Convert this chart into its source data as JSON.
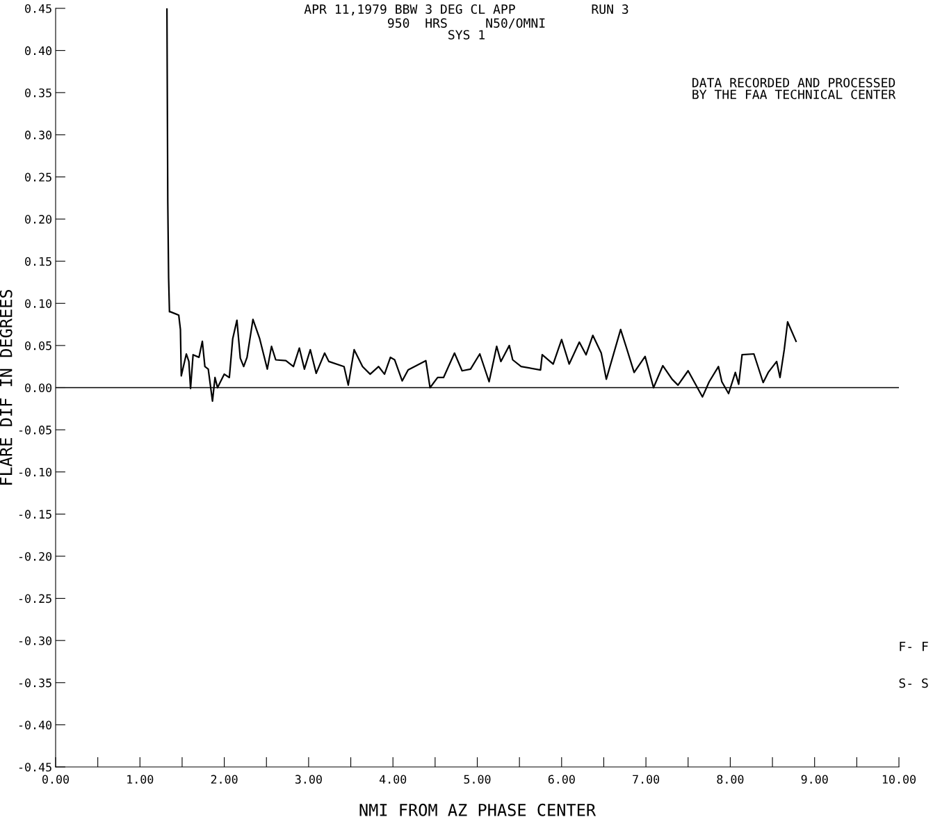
{
  "chart_data": {
    "type": "line",
    "title": "APR 11,1979 BBW 3 DEG CL APP          RUN 3",
    "subtitle": "950  HRS     N50/OMNI\nSYS 1",
    "xlabel": "NMI FROM AZ PHASE CENTER",
    "ylabel": "FLARE DIF IN DEGREES",
    "annotations": [
      "DATA RECORDED AND PROCESSED\nBY THE FAA TECHNICAL CENTER",
      "F- F",
      "S- S"
    ],
    "series": [
      {
        "color": "#000000",
        "x": [
          1.32,
          1.33,
          1.34,
          1.35,
          1.36,
          1.46,
          1.48,
          1.49,
          1.55,
          1.58,
          1.6,
          1.63,
          1.7,
          1.74,
          1.77,
          1.81,
          1.86,
          1.89,
          1.92,
          2.0,
          2.06,
          2.1,
          2.15,
          2.19,
          2.23,
          2.27,
          2.34,
          2.42,
          2.51,
          2.56,
          2.61,
          2.73,
          2.82,
          2.89,
          2.95,
          3.02,
          3.09,
          3.19,
          3.24,
          3.42,
          3.47,
          3.54,
          3.64,
          3.73,
          3.83,
          3.9,
          3.97,
          4.02,
          4.11,
          4.18,
          4.39,
          4.44,
          4.53,
          4.6,
          4.73,
          4.82,
          4.92,
          5.03,
          5.14,
          5.23,
          5.28,
          5.38,
          5.42,
          5.52,
          5.75,
          5.77,
          5.9,
          6.0,
          6.09,
          6.21,
          6.29,
          6.37,
          6.47,
          6.53,
          6.7,
          6.77,
          6.86,
          6.99,
          7.09,
          7.2,
          7.31,
          7.38,
          7.5,
          7.67,
          7.75,
          7.86,
          7.9,
          7.98,
          8.06,
          8.1,
          8.14,
          8.28,
          8.39,
          8.45,
          8.55,
          8.59,
          8.64,
          8.68,
          8.78
        ],
        "values": [
          0.45,
          0.22,
          0.13,
          0.09,
          0.09,
          0.086,
          0.069,
          0.014,
          0.04,
          0.031,
          -0.001,
          0.039,
          0.036,
          0.055,
          0.025,
          0.022,
          -0.016,
          0.012,
          0.0,
          0.016,
          0.012,
          0.058,
          0.08,
          0.035,
          0.025,
          0.036,
          0.081,
          0.058,
          0.022,
          0.049,
          0.033,
          0.032,
          0.025,
          0.047,
          0.022,
          0.045,
          0.017,
          0.041,
          0.031,
          0.025,
          0.003,
          0.045,
          0.025,
          0.016,
          0.025,
          0.016,
          0.036,
          0.033,
          0.008,
          0.021,
          0.032,
          0.0,
          0.012,
          0.012,
          0.041,
          0.02,
          0.022,
          0.04,
          0.007,
          0.049,
          0.031,
          0.05,
          0.033,
          0.025,
          0.021,
          0.039,
          0.028,
          0.057,
          0.028,
          0.054,
          0.039,
          0.062,
          0.041,
          0.01,
          0.069,
          0.047,
          0.018,
          0.037,
          0.0,
          0.026,
          0.01,
          0.003,
          0.02,
          -0.011,
          0.007,
          0.025,
          0.007,
          -0.007,
          0.018,
          0.004,
          0.039,
          0.04,
          0.006,
          0.018,
          0.031,
          0.012,
          0.045,
          0.078,
          0.055
        ]
      }
    ],
    "ref_lines": [
      {
        "axis": "y",
        "value": 0,
        "color": "#000000"
      }
    ],
    "xlim": [
      0,
      10
    ],
    "ylim": [
      -0.45,
      0.45
    ],
    "xticks": [
      {
        "value": 0,
        "label": "0.00"
      },
      {
        "value": 0.5,
        "label": null
      },
      {
        "value": 1,
        "label": "1.00"
      },
      {
        "value": 1.5,
        "label": null
      },
      {
        "value": 2,
        "label": "2.00"
      },
      {
        "value": 2.5,
        "label": null
      },
      {
        "value": 3,
        "label": "3.00"
      },
      {
        "value": 3.5,
        "label": null
      },
      {
        "value": 4,
        "label": "4.00"
      },
      {
        "value": 4.5,
        "label": null
      },
      {
        "value": 5,
        "label": "5.00"
      },
      {
        "value": 5.5,
        "label": null
      },
      {
        "value": 6,
        "label": "6.00"
      },
      {
        "value": 6.5,
        "label": null
      },
      {
        "value": 7,
        "label": "7.00"
      },
      {
        "value": 7.5,
        "label": null
      },
      {
        "value": 8,
        "label": "8.00"
      },
      {
        "value": 8.5,
        "label": null
      },
      {
        "value": 9,
        "label": "9.00"
      },
      {
        "value": 9.5,
        "label": null
      },
      {
        "value": 10,
        "label": "10.00"
      }
    ],
    "yticks": [
      {
        "value": 0.45,
        "label": "0.45"
      },
      {
        "value": 0.4,
        "label": "0.40"
      },
      {
        "value": 0.35,
        "label": "0.35"
      },
      {
        "value": 0.3,
        "label": "0.30"
      },
      {
        "value": 0.25,
        "label": "0.25"
      },
      {
        "value": 0.2,
        "label": "0.20"
      },
      {
        "value": 0.15,
        "label": "0.15"
      },
      {
        "value": 0.1,
        "label": "0.10"
      },
      {
        "value": 0.05,
        "label": "0.05"
      },
      {
        "value": 0,
        "label": "0.00"
      },
      {
        "value": -0.05,
        "label": "-0.05"
      },
      {
        "value": -0.1,
        "label": "-0.10"
      },
      {
        "value": -0.15,
        "label": "-0.15"
      },
      {
        "value": -0.2,
        "label": "-0.20"
      },
      {
        "value": -0.25,
        "label": "-0.25"
      },
      {
        "value": -0.3,
        "label": "-0.30"
      },
      {
        "value": -0.35,
        "label": "-0.35"
      },
      {
        "value": -0.4,
        "label": "-0.40"
      },
      {
        "value": -0.45,
        "label": "-0.45"
      }
    ],
    "grid": false,
    "legend": false,
    "marker": "none",
    "line_style": "solid"
  }
}
